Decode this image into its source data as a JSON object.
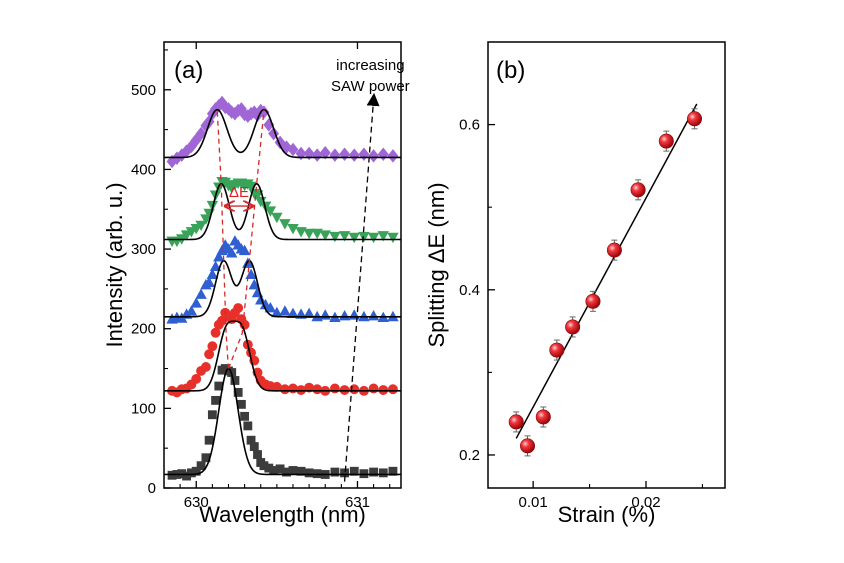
{
  "chart_data": [
    {
      "panel_label": "(a)",
      "type": "scatter",
      "xlabel": "Wavelength (nm)",
      "ylabel": "Intensity (arb. u.)",
      "xlim": [
        629.8,
        631.27
      ],
      "ylim": [
        0,
        560
      ],
      "xticks": [
        630,
        631
      ],
      "yticks": [
        0,
        100,
        200,
        300,
        400,
        500
      ],
      "annotations": {
        "arrow_text_line1": "increasing",
        "arrow_text_line2": "SAW power",
        "splitting_label": "ΔE"
      },
      "colors": {
        "black": "#3c3c3c",
        "red": "#e8302a",
        "blue": "#2f5fd0",
        "green": "#3aa35a",
        "purple": "#a066d6",
        "fit": "#000000",
        "guide": "#d42a2a"
      },
      "series": [
        {
          "marker": "square",
          "color_key": "black",
          "baseline": 17,
          "peaks": [
            {
              "center": 630.2,
              "amp": 133,
              "width": 0.06
            }
          ],
          "points": [
            [
              629.85,
              16
            ],
            [
              629.88,
              17
            ],
            [
              629.91,
              18
            ],
            [
              629.94,
              15
            ],
            [
              629.97,
              19
            ],
            [
              630.0,
              21
            ],
            [
              630.03,
              28
            ],
            [
              630.06,
              38
            ],
            [
              630.08,
              60
            ],
            [
              630.1,
              92
            ],
            [
              630.12,
              110
            ],
            [
              630.14,
              128
            ],
            [
              630.16,
              148
            ],
            [
              630.18,
              150
            ],
            [
              630.2,
              147
            ],
            [
              630.22,
              145
            ],
            [
              630.24,
              135
            ],
            [
              630.26,
              120
            ],
            [
              630.28,
              105
            ],
            [
              630.3,
              90
            ],
            [
              630.32,
              78
            ],
            [
              630.34,
              60
            ],
            [
              630.36,
              52
            ],
            [
              630.38,
              42
            ],
            [
              630.4,
              32
            ],
            [
              630.42,
              28
            ],
            [
              630.45,
              25
            ],
            [
              630.48,
              22
            ],
            [
              630.52,
              24
            ],
            [
              630.56,
              20
            ],
            [
              630.6,
              22
            ],
            [
              630.65,
              21
            ],
            [
              630.7,
              19
            ],
            [
              630.75,
              18
            ],
            [
              630.8,
              17
            ],
            [
              630.86,
              20
            ],
            [
              630.92,
              19
            ],
            [
              630.98,
              21
            ],
            [
              631.04,
              18
            ],
            [
              631.1,
              20
            ],
            [
              631.16,
              19
            ],
            [
              631.22,
              21
            ]
          ]
        },
        {
          "marker": "circle",
          "color_key": "red",
          "baseline": 122,
          "peaks": [
            {
              "center": 630.185,
              "amp": 72,
              "width": 0.05
            },
            {
              "center": 630.285,
              "amp": 72,
              "width": 0.05
            }
          ],
          "points": [
            [
              629.85,
              122
            ],
            [
              629.88,
              120
            ],
            [
              629.91,
              124
            ],
            [
              629.94,
              125
            ],
            [
              629.97,
              130
            ],
            [
              630.0,
              137
            ],
            [
              630.03,
              147
            ],
            [
              630.06,
              152
            ],
            [
              630.08,
              168
            ],
            [
              630.1,
              178
            ],
            [
              630.12,
              195
            ],
            [
              630.14,
              205
            ],
            [
              630.16,
              210
            ],
            [
              630.18,
              220
            ],
            [
              630.2,
              216
            ],
            [
              630.22,
              212
            ],
            [
              630.24,
              220
            ],
            [
              630.26,
              226
            ],
            [
              630.28,
              212
            ],
            [
              630.3,
              205
            ],
            [
              630.32,
              180
            ],
            [
              630.34,
              170
            ],
            [
              630.36,
              160
            ],
            [
              630.38,
              145
            ],
            [
              630.4,
              135
            ],
            [
              630.43,
              130
            ],
            [
              630.46,
              128
            ],
            [
              630.5,
              127
            ],
            [
              630.55,
              124
            ],
            [
              630.6,
              125
            ],
            [
              630.65,
              123
            ],
            [
              630.7,
              126
            ],
            [
              630.75,
              124
            ],
            [
              630.8,
              122
            ],
            [
              630.86,
              125
            ],
            [
              630.92,
              123
            ],
            [
              630.98,
              124
            ],
            [
              631.04,
              122
            ],
            [
              631.1,
              125
            ],
            [
              631.16,
              123
            ],
            [
              631.22,
              124
            ]
          ]
        },
        {
          "marker": "triangle-up",
          "color_key": "blue",
          "baseline": 215,
          "peaks": [
            {
              "center": 630.17,
              "amp": 70,
              "width": 0.05
            },
            {
              "center": 630.33,
              "amp": 70,
              "width": 0.05
            }
          ],
          "points": [
            [
              629.85,
              212
            ],
            [
              629.88,
              214
            ],
            [
              629.91,
              213
            ],
            [
              629.94,
              218
            ],
            [
              629.97,
              222
            ],
            [
              630.0,
              232
            ],
            [
              630.03,
              243
            ],
            [
              630.06,
              255
            ],
            [
              630.08,
              258
            ],
            [
              630.1,
              268
            ],
            [
              630.12,
              278
            ],
            [
              630.14,
              290
            ],
            [
              630.16,
              298
            ],
            [
              630.18,
              305
            ],
            [
              630.2,
              300
            ],
            [
              630.22,
              295
            ],
            [
              630.24,
              310
            ],
            [
              630.26,
              305
            ],
            [
              630.28,
              300
            ],
            [
              630.3,
              298
            ],
            [
              630.32,
              282
            ],
            [
              630.34,
              268
            ],
            [
              630.36,
              255
            ],
            [
              630.38,
              245
            ],
            [
              630.4,
              236
            ],
            [
              630.43,
              230
            ],
            [
              630.46,
              226
            ],
            [
              630.5,
              220
            ],
            [
              630.55,
              222
            ],
            [
              630.6,
              219
            ],
            [
              630.65,
              218
            ],
            [
              630.7,
              219
            ],
            [
              630.75,
              215
            ],
            [
              630.8,
              217
            ],
            [
              630.86,
              214
            ],
            [
              630.92,
              216
            ],
            [
              630.98,
              217
            ],
            [
              631.04,
              215
            ],
            [
              631.1,
              216
            ],
            [
              631.16,
              214
            ],
            [
              631.22,
              215
            ]
          ]
        },
        {
          "marker": "triangle-down",
          "color_key": "green",
          "baseline": 312,
          "peaks": [
            {
              "center": 630.155,
              "amp": 70,
              "width": 0.05
            },
            {
              "center": 630.375,
              "amp": 70,
              "width": 0.05
            }
          ],
          "points": [
            [
              629.85,
              310
            ],
            [
              629.88,
              310
            ],
            [
              629.91,
              313
            ],
            [
              629.94,
              318
            ],
            [
              629.97,
              322
            ],
            [
              630.0,
              326
            ],
            [
              630.03,
              330
            ],
            [
              630.06,
              338
            ],
            [
              630.08,
              345
            ],
            [
              630.1,
              355
            ],
            [
              630.12,
              368
            ],
            [
              630.14,
              378
            ],
            [
              630.16,
              385
            ],
            [
              630.18,
              384
            ],
            [
              630.2,
              380
            ],
            [
              630.22,
              377
            ],
            [
              630.24,
              381
            ],
            [
              630.26,
              383
            ],
            [
              630.28,
              383
            ],
            [
              630.3,
              380
            ],
            [
              630.32,
              382
            ],
            [
              630.34,
              379
            ],
            [
              630.36,
              370
            ],
            [
              630.38,
              368
            ],
            [
              630.4,
              360
            ],
            [
              630.43,
              354
            ],
            [
              630.46,
              348
            ],
            [
              630.5,
              340
            ],
            [
              630.55,
              332
            ],
            [
              630.6,
              326
            ],
            [
              630.65,
              322
            ],
            [
              630.7,
              320
            ],
            [
              630.75,
              320
            ],
            [
              630.8,
              318
            ],
            [
              630.86,
              316
            ],
            [
              630.92,
              317
            ],
            [
              630.98,
              315
            ],
            [
              631.04,
              316
            ],
            [
              631.1,
              315
            ],
            [
              631.16,
              317
            ],
            [
              631.22,
              315
            ]
          ]
        },
        {
          "marker": "diamond",
          "color_key": "purple",
          "baseline": 415,
          "peaks": [
            {
              "center": 630.13,
              "amp": 60,
              "width": 0.06
            },
            {
              "center": 630.42,
              "amp": 60,
              "width": 0.06
            }
          ],
          "points": [
            [
              629.85,
              410
            ],
            [
              629.88,
              414
            ],
            [
              629.91,
              418
            ],
            [
              629.94,
              423
            ],
            [
              629.97,
              429
            ],
            [
              630.0,
              437
            ],
            [
              630.03,
              445
            ],
            [
              630.06,
              455
            ],
            [
              630.08,
              460
            ],
            [
              630.1,
              470
            ],
            [
              630.12,
              476
            ],
            [
              630.14,
              480
            ],
            [
              630.16,
              484
            ],
            [
              630.18,
              478
            ],
            [
              630.2,
              476
            ],
            [
              630.22,
              472
            ],
            [
              630.24,
              470
            ],
            [
              630.26,
              474
            ],
            [
              630.28,
              476
            ],
            [
              630.3,
              469
            ],
            [
              630.32,
              467
            ],
            [
              630.34,
              470
            ],
            [
              630.36,
              472
            ],
            [
              630.38,
              468
            ],
            [
              630.4,
              474
            ],
            [
              630.42,
              472
            ],
            [
              630.45,
              456
            ],
            [
              630.48,
              445
            ],
            [
              630.52,
              434
            ],
            [
              630.56,
              428
            ],
            [
              630.6,
              425
            ],
            [
              630.65,
              420
            ],
            [
              630.7,
              420
            ],
            [
              630.75,
              418
            ],
            [
              630.8,
              421
            ],
            [
              630.86,
              418
            ],
            [
              630.92,
              419
            ],
            [
              630.98,
              418
            ],
            [
              631.04,
              419
            ],
            [
              631.1,
              417
            ],
            [
              631.16,
              419
            ],
            [
              631.22,
              417
            ]
          ]
        }
      ]
    },
    {
      "panel_label": "(b)",
      "type": "scatter",
      "xlabel": "Strain (%)",
      "ylabel": "Splitting ΔE (nm)",
      "xlim": [
        0.006,
        0.027
      ],
      "ylim": [
        0.16,
        0.7
      ],
      "xticks": [
        0.01,
        0.02
      ],
      "xtick_labels": [
        "0.01",
        "0.02"
      ],
      "yticks": [
        0.2,
        0.4,
        0.6
      ],
      "ytick_labels": [
        "0.2",
        "0.4",
        "0.6"
      ],
      "marker_color": "#e3141b",
      "fit_line": {
        "x": [
          0.0085,
          0.0245
        ],
        "y": [
          0.22,
          0.625
        ]
      },
      "points": [
        {
          "x": 0.0085,
          "y": 0.24
        },
        {
          "x": 0.0095,
          "y": 0.211
        },
        {
          "x": 0.0109,
          "y": 0.246
        },
        {
          "x": 0.0121,
          "y": 0.327
        },
        {
          "x": 0.0135,
          "y": 0.355
        },
        {
          "x": 0.0153,
          "y": 0.386
        },
        {
          "x": 0.0172,
          "y": 0.448
        },
        {
          "x": 0.0193,
          "y": 0.521
        },
        {
          "x": 0.0218,
          "y": 0.58
        },
        {
          "x": 0.0243,
          "y": 0.607
        }
      ]
    }
  ]
}
